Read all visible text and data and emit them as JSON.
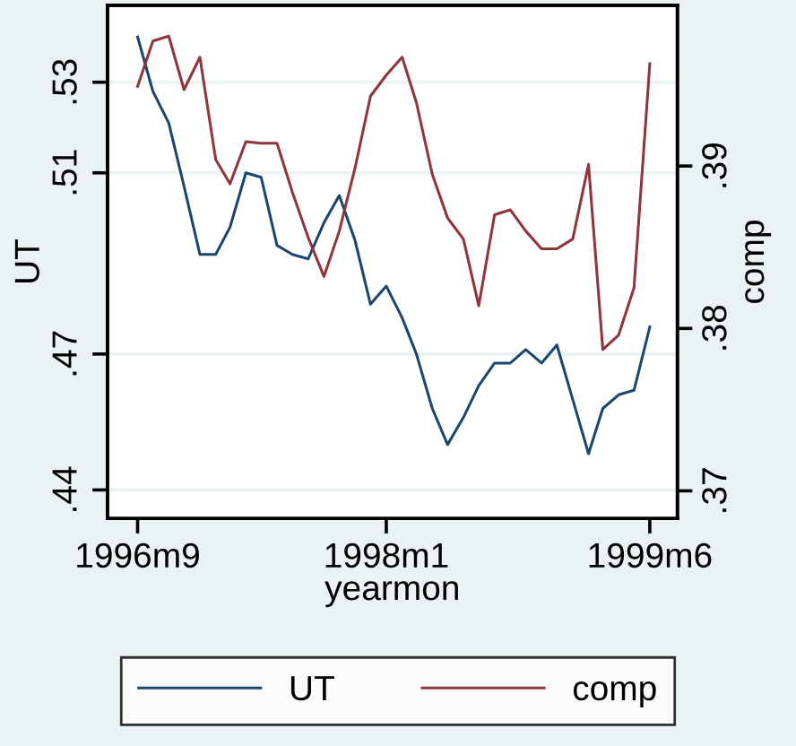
{
  "chart_data": {
    "type": "line",
    "xlabel": "yearmon",
    "ylabel": "UT",
    "y2label": "comp",
    "x": [
      "1996-09",
      "1996-10",
      "1996-11",
      "1996-12",
      "1997-01",
      "1997-02",
      "1997-03",
      "1997-04",
      "1997-05",
      "1997-06",
      "1997-07",
      "1997-08",
      "1997-09",
      "1997-10",
      "1997-11",
      "1997-12",
      "1998-01",
      "1998-02",
      "1998-03",
      "1998-04",
      "1998-05",
      "1998-06",
      "1998-07",
      "1998-08",
      "1998-09",
      "1998-10",
      "1998-11",
      "1998-12",
      "1999-01",
      "1999-02",
      "1999-03",
      "1999-04",
      "1999-05",
      "1999-06"
    ],
    "series": [
      {
        "name": "UT",
        "color": "#1a476f",
        "values": [
          0.54,
          0.528,
          0.521,
          0.507,
          0.492,
          0.492,
          0.498,
          0.51,
          0.509,
          0.494,
          0.492,
          0.491,
          0.499,
          0.505,
          0.495,
          0.481,
          0.485,
          0.478,
          0.47,
          0.458,
          0.45,
          0.456,
          0.463,
          0.468,
          0.468,
          0.471,
          0.468,
          0.472,
          0.46,
          0.448,
          0.458,
          0.461,
          0.462,
          0.476
        ]
      },
      {
        "name": "comp",
        "color": "#90353b",
        "axis": "y2",
        "values": [
          0.3949,
          0.3977,
          0.398,
          0.3947,
          0.3967,
          0.3904,
          0.3889,
          0.3915,
          0.3914,
          0.3914,
          0.3884,
          0.3856,
          0.3832,
          0.386,
          0.3899,
          0.3943,
          0.3956,
          0.3967,
          0.3939,
          0.3895,
          0.3868,
          0.3855,
          0.3814,
          0.387,
          0.3873,
          0.386,
          0.3849,
          0.3849,
          0.3855,
          0.3901,
          0.3787,
          0.3796,
          0.3825,
          0.3963
        ]
      }
    ],
    "xlim": [
      "1996-07-04",
      "1999-07-25"
    ],
    "xticks": [
      {
        "value": "1996-09",
        "label": "1996m9"
      },
      {
        "value": "1998-01",
        "label": "1998m1"
      },
      {
        "value": "1999-06",
        "label": "1999m6"
      }
    ],
    "ylim": [
      0.4337,
      0.547
    ],
    "yticks": [
      {
        "value": 0.44,
        "label": ".44"
      },
      {
        "value": 0.47,
        "label": ".47"
      },
      {
        "value": 0.51,
        "label": ".51"
      },
      {
        "value": 0.53,
        "label": ".53"
      }
    ],
    "y2lim": [
      0.3683,
      0.3999
    ],
    "y2ticks": [
      {
        "value": 0.37,
        "label": ".37"
      },
      {
        "value": 0.38,
        "label": ".38"
      },
      {
        "value": 0.39,
        "label": ".39"
      }
    ],
    "grid": "y",
    "legend": "bottom"
  }
}
